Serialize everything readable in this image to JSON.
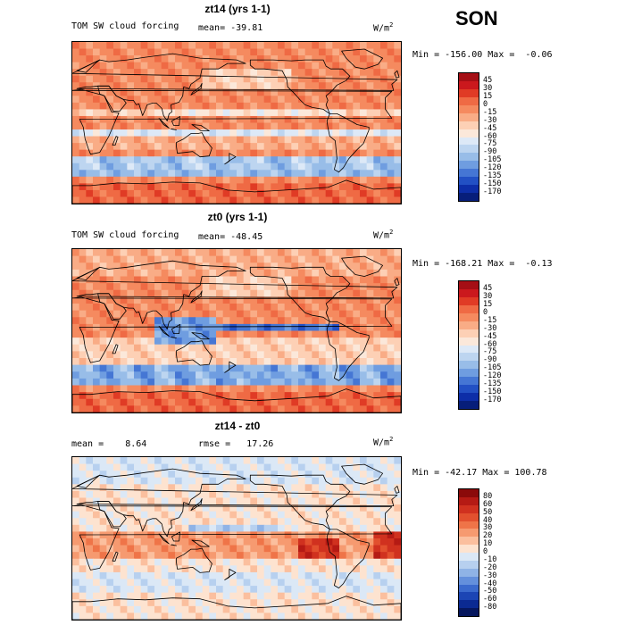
{
  "season": "SON",
  "panels": [
    {
      "title": "zt14 (yrs 1-1)",
      "left_label": "TOM SW cloud forcing",
      "mean_text": "mean= -39.81",
      "units": "W/m",
      "units_sup": "2",
      "minmax": "Min = -156.00 Max =  -0.06",
      "levels": [
        "45",
        "30",
        "15",
        "0",
        "-15",
        "-30",
        "-45",
        "-60",
        "-75",
        "-90",
        "-105",
        "-120",
        "-135",
        "-150",
        "-170"
      ],
      "colors": [
        "#a50f15",
        "#cb181d",
        "#e03b25",
        "#ef6a44",
        "#f58a5f",
        "#f9ac86",
        "#fdd0b5",
        "#fbe8da",
        "#dde9f7",
        "#bdd5f0",
        "#98bde8",
        "#6f9de0",
        "#4576d4",
        "#2250c4",
        "#0d2ea8",
        "#071e7a"
      ],
      "chart_data": {
        "type": "heatmap",
        "title": "zt14 (yrs 1-1)",
        "variable": "TOM SW cloud forcing",
        "mean": -39.81,
        "min": -156.0,
        "max": -0.06,
        "units": "W/m2",
        "contour_levels": [
          45,
          30,
          15,
          0,
          -15,
          -30,
          -45,
          -60,
          -75,
          -90,
          -105,
          -120,
          -135,
          -150,
          -170
        ]
      }
    },
    {
      "title": "zt0 (yrs 1-1)",
      "left_label": "TOM SW cloud forcing",
      "mean_text": "mean= -48.45",
      "units": "W/m",
      "units_sup": "2",
      "minmax": "Min = -168.21 Max =  -0.13",
      "levels": [
        "45",
        "30",
        "15",
        "0",
        "-15",
        "-30",
        "-45",
        "-60",
        "-75",
        "-90",
        "-105",
        "-120",
        "-135",
        "-150",
        "-170"
      ],
      "colors": [
        "#a50f15",
        "#cb181d",
        "#e03b25",
        "#ef6a44",
        "#f58a5f",
        "#f9ac86",
        "#fdd0b5",
        "#fbe8da",
        "#dde9f7",
        "#bdd5f0",
        "#98bde8",
        "#6f9de0",
        "#4576d4",
        "#2250c4",
        "#0d2ea8",
        "#071e7a"
      ],
      "chart_data": {
        "type": "heatmap",
        "title": "zt0 (yrs 1-1)",
        "variable": "TOM SW cloud forcing",
        "mean": -48.45,
        "min": -168.21,
        "max": -0.13,
        "units": "W/m2",
        "contour_levels": [
          45,
          30,
          15,
          0,
          -15,
          -30,
          -45,
          -60,
          -75,
          -90,
          -105,
          -120,
          -135,
          -150,
          -170
        ]
      }
    },
    {
      "title": "zt14 - zt0",
      "mean_text": "mean =    8.64",
      "rmse_text": "rmse =   17.26",
      "units": "W/m",
      "units_sup": "2",
      "minmax": "Min = -42.17 Max = 100.78",
      "levels": [
        "80",
        "60",
        "50",
        "40",
        "30",
        "20",
        "10",
        "0",
        "-10",
        "-20",
        "-30",
        "-40",
        "-50",
        "-60",
        "-80"
      ],
      "colors": [
        "#8b0a0a",
        "#b51a14",
        "#d0311f",
        "#e2502e",
        "#ef7448",
        "#f69a70",
        "#fbbf9e",
        "#fde3d0",
        "#dbe8f6",
        "#b7d0ef",
        "#8fb3e6",
        "#6490dc",
        "#3b6acd",
        "#1c45b4",
        "#0b2a92",
        "#06175e"
      ],
      "chart_data": {
        "type": "heatmap",
        "title": "zt14 - zt0",
        "mean": 8.64,
        "rmse": 17.26,
        "min": -42.17,
        "max": 100.78,
        "units": "W/m2",
        "contour_levels": [
          80,
          60,
          50,
          40,
          30,
          20,
          10,
          0,
          -10,
          -20,
          -30,
          -40,
          -50,
          -60,
          -80
        ]
      }
    }
  ]
}
